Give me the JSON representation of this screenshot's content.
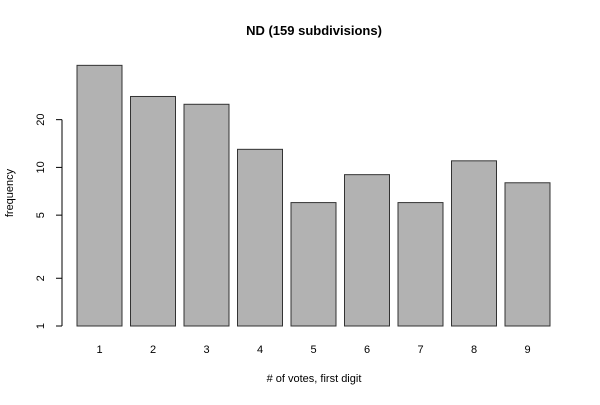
{
  "chart_data": {
    "type": "bar",
    "title": "ND (159 subdivisions)",
    "xlabel": "# of votes, first digit",
    "ylabel": "frequency",
    "y_scale": "log",
    "ylim": [
      1,
      48
    ],
    "y_ticks": [
      1,
      2,
      5,
      10,
      20
    ],
    "y_tick_labels": [
      "1",
      "2",
      "5",
      "10",
      "20"
    ],
    "categories": [
      "1",
      "2",
      "3",
      "4",
      "5",
      "6",
      "7",
      "8",
      "9"
    ],
    "values": [
      44,
      28,
      25,
      13,
      6,
      9,
      6,
      11,
      8
    ],
    "bar_color": "#b2b2b2",
    "bar_stroke": "#333333",
    "grid": false,
    "legend": "none"
  }
}
